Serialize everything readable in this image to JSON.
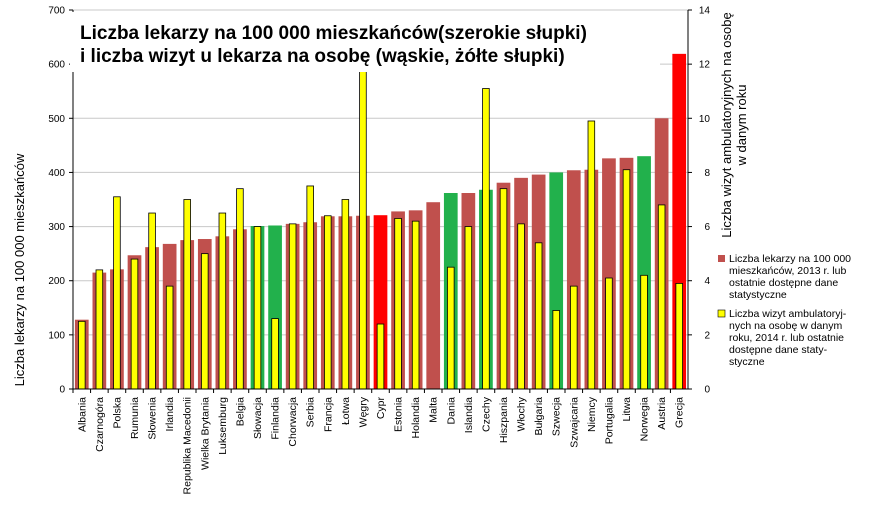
{
  "chart_data": {
    "type": "bar",
    "title_line1": "Liczba lekarzy na 100 000 mieszkańców(szerokie słupki)",
    "title_line2": "i liczba wizyt u lekarza na osobę (wąskie, żółte słupki)",
    "ylabel_left": "Liczba lekarzy na 100 000 mieszkańców",
    "ylabel_right_line1": "Liczba wizyt ambulatoryjnych na osobę",
    "ylabel_right_line2": "w danym roku",
    "ylim_left": [
      0,
      700
    ],
    "ylim_right": [
      0,
      14
    ],
    "yticks_left": [
      0,
      100,
      200,
      300,
      400,
      500,
      600,
      700
    ],
    "yticks_right": [
      0,
      2,
      4,
      6,
      8,
      10,
      12,
      14
    ],
    "grid": true,
    "legend_position": "right",
    "categories": [
      "Albania",
      "Czarnogóra",
      "Polska",
      "Rumunia",
      "Słowenia",
      "Irlandia",
      "Republika Macedonii",
      "Wielka Brytania",
      "Luksemburg",
      "Belgia",
      "Słowacja",
      "Finlandia",
      "Chorwacja",
      "Serbia",
      "Francja",
      "Łotwa",
      "Węgry",
      "Cypr",
      "Estonia",
      "Holandia",
      "Malta",
      "Dania",
      "Islandia",
      "Czechy",
      "Hiszpania",
      "Włochy",
      "Bułgaria",
      "Szwecja",
      "Szwajcaria",
      "Niemcy",
      "Portugalia",
      "Litwa",
      "Norwegia",
      "Austria",
      "Grecja"
    ],
    "series": [
      {
        "name": "Liczba lekarzy na 100 000 mieszkańców, 2013 r. lub ostatnie dostępne dane statystyczne",
        "axis": "left",
        "values": [
          128,
          215,
          221,
          247,
          262,
          268,
          275,
          277,
          282,
          295,
          301,
          302,
          305,
          308,
          319,
          319,
          320,
          321,
          328,
          330,
          345,
          362,
          362,
          368,
          381,
          390,
          396,
          400,
          404,
          405,
          426,
          427,
          430,
          500,
          619
        ],
        "colors": [
          "#c0504d",
          "#c0504d",
          "#c0504d",
          "#c0504d",
          "#c0504d",
          "#c0504d",
          "#c0504d",
          "#c0504d",
          "#c0504d",
          "#c0504d",
          "#22b14c",
          "#22b14c",
          "#c0504d",
          "#c0504d",
          "#c0504d",
          "#c0504d",
          "#c0504d",
          "#ff0000",
          "#c0504d",
          "#c0504d",
          "#c0504d",
          "#22b14c",
          "#c0504d",
          "#22b14c",
          "#c0504d",
          "#c0504d",
          "#c0504d",
          "#22b14c",
          "#c0504d",
          "#c0504d",
          "#c0504d",
          "#c0504d",
          "#22b14c",
          "#c0504d",
          "#ff0000"
        ]
      },
      {
        "name": "Liczba wizyt ambulatoryjnych na osobę w danym roku, 2014 r. lub ostatnie dostępne dane statystyczne",
        "axis": "right",
        "values": [
          2.5,
          4.4,
          7.1,
          4.8,
          6.5,
          3.8,
          7.0,
          5.0,
          6.5,
          7.4,
          6.0,
          2.6,
          6.1,
          7.5,
          6.4,
          7.0,
          11.8,
          2.4,
          6.3,
          6.2,
          null,
          4.5,
          6.0,
          11.1,
          7.4,
          6.1,
          5.4,
          2.9,
          3.8,
          9.9,
          4.1,
          8.1,
          4.2,
          6.8,
          3.9
        ],
        "color": "#ffff00"
      }
    ],
    "legend": {
      "item1_lines": [
        "Liczba lekarzy na 100 000",
        "mieszkańców, 2013 r. lub",
        "ostatnie dostępne dane",
        "statystyczne"
      ],
      "item2_lines": [
        "Liczba wizyt ambulatoryj-",
        "nych na osobę w danym",
        "roku, 2014 r. lub ostatnie",
        "dostępne dane staty-",
        "styczne"
      ],
      "item1_color": "#c0504d",
      "item2_color": "#ffff00"
    }
  }
}
